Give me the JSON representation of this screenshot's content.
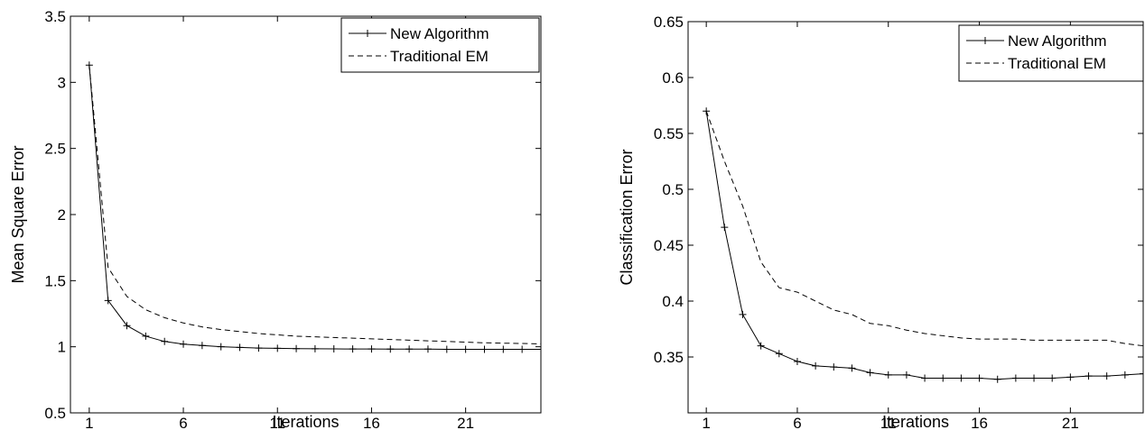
{
  "chart_data": [
    {
      "type": "line",
      "title": "",
      "xlabel": "Iterations",
      "ylabel": "Mean Square Error",
      "xlim": [
        0,
        25
      ],
      "ylim": [
        0.5,
        3.5
      ],
      "xticks": [
        1,
        6,
        11,
        16,
        21
      ],
      "yticks": [
        0.5,
        1,
        1.5,
        2,
        2.5,
        3,
        3.5
      ],
      "ytick_labels": [
        "0.5",
        "1",
        "1.5",
        "2",
        "2.5",
        "3",
        "3.5"
      ],
      "grid": false,
      "legend_position": "top-right",
      "x": [
        1,
        2,
        3,
        4,
        5,
        6,
        7,
        8,
        9,
        10,
        11,
        12,
        13,
        14,
        15,
        16,
        17,
        18,
        19,
        20,
        21,
        22,
        23,
        24,
        25
      ],
      "series": [
        {
          "name": "New Algorithm",
          "style": "solid-plus",
          "values": [
            3.13,
            1.35,
            1.16,
            1.08,
            1.04,
            1.02,
            1.01,
            1.0,
            0.995,
            0.99,
            0.988,
            0.986,
            0.985,
            0.984,
            0.983,
            0.983,
            0.982,
            0.982,
            0.982,
            0.981,
            0.981,
            0.981,
            0.981,
            0.981,
            0.981
          ]
        },
        {
          "name": "Traditional EM",
          "style": "dashed",
          "values": [
            3.13,
            1.6,
            1.38,
            1.28,
            1.22,
            1.18,
            1.15,
            1.13,
            1.115,
            1.1,
            1.09,
            1.08,
            1.075,
            1.07,
            1.065,
            1.06,
            1.055,
            1.05,
            1.045,
            1.04,
            1.035,
            1.03,
            1.027,
            1.025,
            1.022
          ]
        }
      ]
    },
    {
      "type": "line",
      "title": "",
      "xlabel": "Iterations",
      "ylabel": "Classification Error",
      "xlim": [
        0,
        25
      ],
      "ylim": [
        0.3,
        0.65
      ],
      "xticks": [
        1,
        6,
        11,
        16,
        21
      ],
      "yticks": [
        0.35,
        0.4,
        0.45,
        0.5,
        0.55,
        0.6,
        0.65
      ],
      "ytick_labels": [
        "0.35",
        "0.4",
        "0.45",
        "0.5",
        "0.55",
        "0.6",
        "0.65"
      ],
      "grid": false,
      "legend_position": "top-right",
      "x": [
        1,
        2,
        3,
        4,
        5,
        6,
        7,
        8,
        9,
        10,
        11,
        12,
        13,
        14,
        15,
        16,
        17,
        18,
        19,
        20,
        21,
        22,
        23,
        24,
        25
      ],
      "series": [
        {
          "name": "New Algorithm",
          "style": "solid-plus",
          "values": [
            0.57,
            0.466,
            0.388,
            0.36,
            0.353,
            0.346,
            0.342,
            0.341,
            0.34,
            0.336,
            0.334,
            0.334,
            0.331,
            0.331,
            0.331,
            0.331,
            0.33,
            0.331,
            0.331,
            0.331,
            0.332,
            0.333,
            0.333,
            0.334,
            0.335
          ]
        },
        {
          "name": "Traditional EM",
          "style": "dashed",
          "values": [
            0.57,
            0.525,
            0.485,
            0.435,
            0.412,
            0.408,
            0.4,
            0.392,
            0.388,
            0.38,
            0.378,
            0.374,
            0.371,
            0.369,
            0.367,
            0.366,
            0.366,
            0.366,
            0.365,
            0.365,
            0.365,
            0.365,
            0.365,
            0.362,
            0.36
          ]
        }
      ]
    }
  ]
}
